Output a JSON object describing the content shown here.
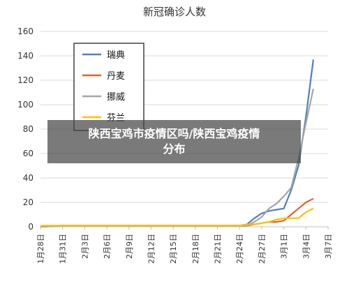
{
  "chart_data": {
    "type": "line",
    "title": "新冠确诊人数",
    "x": [
      "1月28日",
      "1月31日",
      "2月3日",
      "2月6日",
      "2月9日",
      "2月12日",
      "2月15日",
      "2月18日",
      "2月21日",
      "2月24日",
      "2月27日",
      "3月1日",
      "3月4日",
      "3月7日"
    ],
    "ylim": [
      0,
      160
    ],
    "yticks": [
      0,
      20,
      40,
      60,
      80,
      100,
      120,
      140,
      160
    ],
    "grid": true,
    "legend_position": "top-left",
    "series": [
      {
        "name": "瑞典",
        "color": "#4f81bd",
        "points": [
          [
            0,
            0
          ],
          [
            3,
            1
          ],
          [
            6,
            1
          ],
          [
            9,
            1
          ],
          [
            12,
            1
          ],
          [
            15,
            1
          ],
          [
            18,
            1
          ],
          [
            21,
            1
          ],
          [
            24,
            1
          ],
          [
            27,
            1
          ],
          [
            28,
            2
          ],
          [
            29,
            7
          ],
          [
            30,
            11
          ],
          [
            31,
            13
          ],
          [
            32,
            14
          ],
          [
            33,
            15
          ],
          [
            34,
            30
          ],
          [
            35,
            50
          ],
          [
            36,
            90
          ],
          [
            37,
            137
          ]
        ]
      },
      {
        "name": "丹麦",
        "color": "#e0622a",
        "points": [
          [
            0,
            0
          ],
          [
            3,
            1
          ],
          [
            6,
            1
          ],
          [
            9,
            1
          ],
          [
            12,
            1
          ],
          [
            15,
            1
          ],
          [
            18,
            1
          ],
          [
            21,
            1
          ],
          [
            24,
            1
          ],
          [
            27,
            1
          ],
          [
            28,
            1
          ],
          [
            29,
            2
          ],
          [
            30,
            3
          ],
          [
            31,
            4
          ],
          [
            32,
            4
          ],
          [
            33,
            5
          ],
          [
            34,
            10
          ],
          [
            35,
            15
          ],
          [
            36,
            20
          ],
          [
            37,
            23
          ]
        ]
      },
      {
        "name": "挪威",
        "color": "#a5a5a5",
        "points": [
          [
            0,
            0
          ],
          [
            3,
            1
          ],
          [
            6,
            1
          ],
          [
            9,
            1
          ],
          [
            12,
            1
          ],
          [
            15,
            1
          ],
          [
            18,
            1
          ],
          [
            21,
            1
          ],
          [
            24,
            1
          ],
          [
            27,
            1
          ],
          [
            28,
            1
          ],
          [
            29,
            4
          ],
          [
            30,
            8
          ],
          [
            31,
            15
          ],
          [
            32,
            19
          ],
          [
            33,
            25
          ],
          [
            34,
            32
          ],
          [
            35,
            56
          ],
          [
            36,
            85
          ],
          [
            37,
            113
          ]
        ]
      },
      {
        "name": "芬兰",
        "color": "#ffc000",
        "points": [
          [
            0,
            1
          ],
          [
            3,
            1
          ],
          [
            6,
            1
          ],
          [
            9,
            1
          ],
          [
            12,
            1
          ],
          [
            15,
            1
          ],
          [
            18,
            1
          ],
          [
            21,
            1
          ],
          [
            24,
            1
          ],
          [
            27,
            1
          ],
          [
            28,
            2
          ],
          [
            29,
            2
          ],
          [
            30,
            3
          ],
          [
            31,
            4
          ],
          [
            32,
            6
          ],
          [
            33,
            7
          ],
          [
            34,
            7
          ],
          [
            35,
            7
          ],
          [
            36,
            12
          ],
          [
            37,
            15
          ]
        ]
      }
    ]
  },
  "overlay": {
    "line1": "陕西宝鸡市疫情区吗/陕西宝鸡疫情",
    "line2": "分布"
  }
}
